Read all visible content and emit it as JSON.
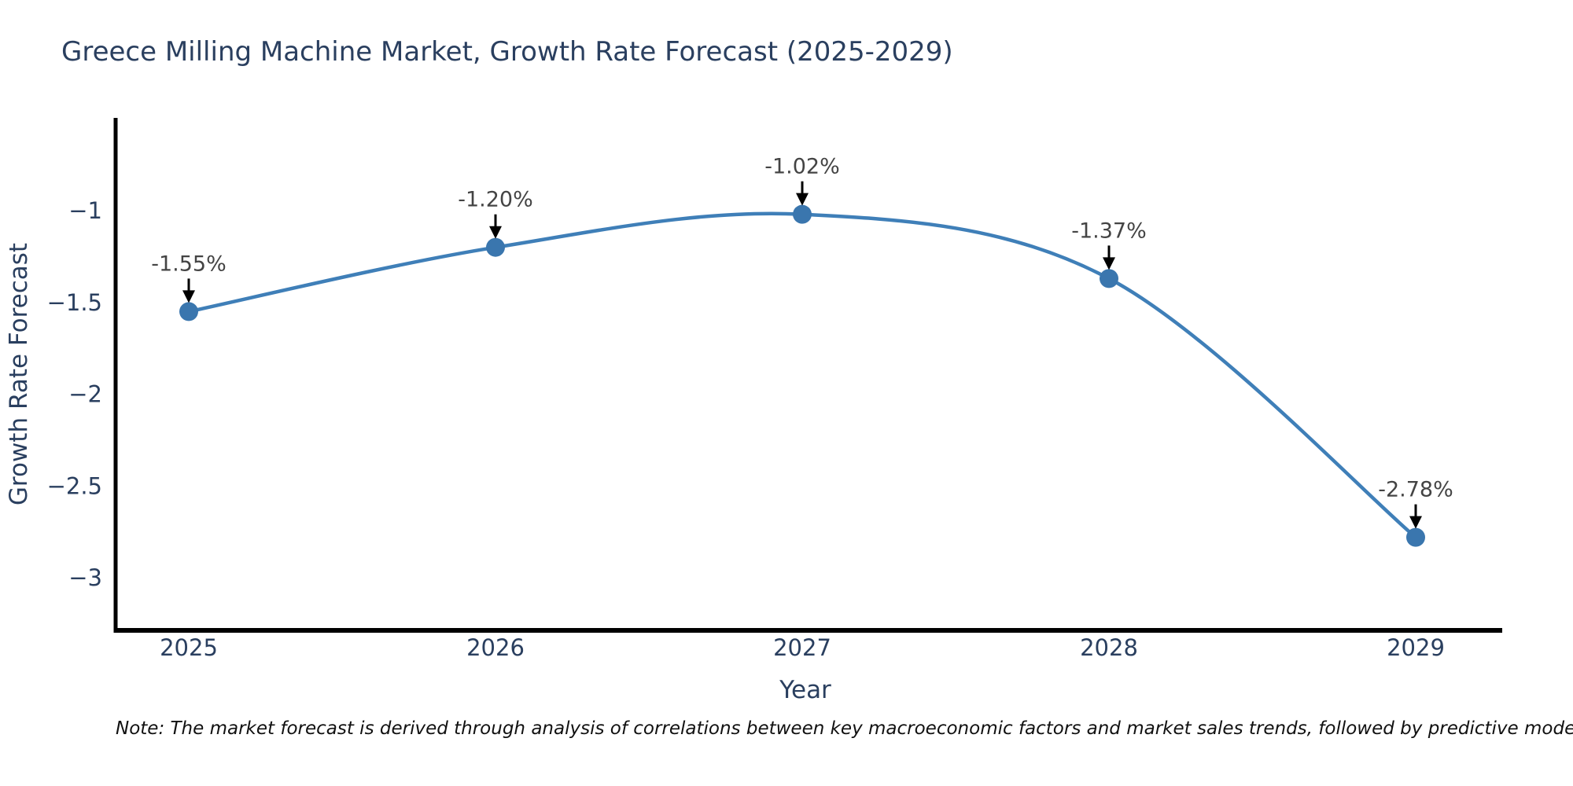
{
  "header": {
    "title": "Greece Milling Machine Market, Growth Rate Forecast (2025-2029)"
  },
  "footer": {
    "note": "Note: The market forecast is derived through analysis of correlations between key macroeconomic factors and market sales trends, followed by predictive modeling to project future sa"
  },
  "chart_data": {
    "type": "line",
    "line_shape": "spline",
    "title": "Greece Milling Machine Market, Growth Rate Forecast (2025-2029)",
    "xlabel": "Year",
    "ylabel": "Growth Rate Forecast",
    "x": [
      2025,
      2026,
      2027,
      2028,
      2029
    ],
    "values": [
      -1.55,
      -1.2,
      -1.02,
      -1.37,
      -2.78
    ],
    "point_labels": [
      "-1.55%",
      "-1.20%",
      "-1.02%",
      "-1.37%",
      "-2.78%"
    ],
    "x_tick_labels": [
      "2025",
      "2026",
      "2027",
      "2028",
      "2029"
    ],
    "y_ticks": [
      {
        "value": -1,
        "label": "−1"
      },
      {
        "value": -1.5,
        "label": "−1.5"
      },
      {
        "value": -2,
        "label": "−2"
      },
      {
        "value": -2.5,
        "label": "−2.5"
      },
      {
        "value": -3,
        "label": "−3"
      }
    ],
    "xlim": [
      2024.76,
      2029.28
    ],
    "ylim": [
      -3.29,
      -0.5
    ],
    "grid": false,
    "legend": "none",
    "annotations_have_arrows": true,
    "colors": {
      "line": "#3f7fb8",
      "marker": "#3a76ae",
      "arrow": "#000000",
      "axis": "#000000",
      "title": "#2a3f5f",
      "tick_label": "#2a3f5f",
      "axis_title": "#2a3f5f",
      "annotation_text": "#444444",
      "background": "#ffffff"
    }
  }
}
